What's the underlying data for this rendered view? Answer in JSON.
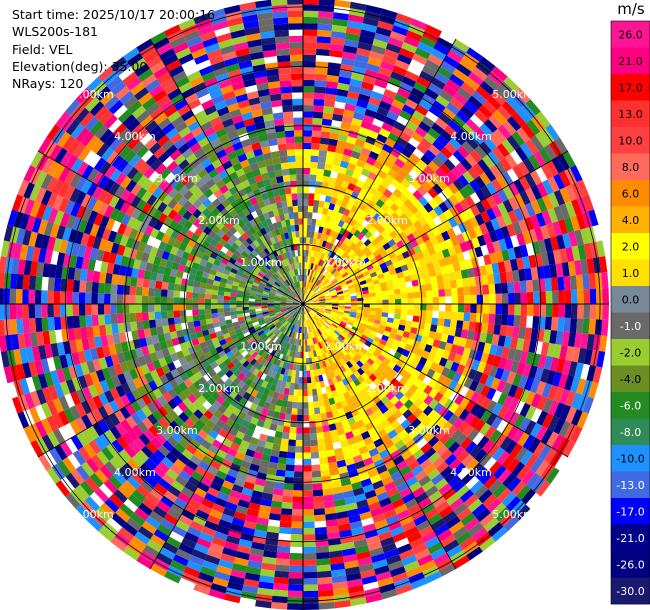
{
  "info": {
    "start_time": "Start time: 2025/10/17 20:00:16",
    "station": "WLS200s-181",
    "field": "Field: VEL",
    "elevation": "Elevation(deg): 35.00",
    "nrays": "NRays: 120"
  },
  "chart_data": {
    "type": "heatmap",
    "projection": "polar PPI",
    "field": "VEL",
    "units": "m/s",
    "nrays": 120,
    "elevation_deg": 35.0,
    "range_rings_km": [
      1,
      2,
      3,
      4,
      5
    ],
    "ring_labels": [
      "1.00km",
      "2.00km",
      "3.00km",
      "4.00km",
      "5.00km"
    ],
    "colorbar": {
      "title": "m/s",
      "bins": [
        {
          "label": "26.0",
          "color": "#ff1493"
        },
        {
          "label": "21.0",
          "color": "#ff0080"
        },
        {
          "label": "17.0",
          "color": "#ff0000"
        },
        {
          "label": "13.0",
          "color": "#ff3030"
        },
        {
          "label": "10.0",
          "color": "#ff4040"
        },
        {
          "label": "8.0",
          "color": "#ff6a5a"
        },
        {
          "label": "6.0",
          "color": "#ff8c00"
        },
        {
          "label": "4.0",
          "color": "#ffb000"
        },
        {
          "label": "2.0",
          "color": "#ffff00"
        },
        {
          "label": "1.0",
          "color": "#ffe000"
        },
        {
          "label": "0.0",
          "color": "#778899"
        },
        {
          "label": "-1.0",
          "color": "#696969"
        },
        {
          "label": "-2.0",
          "color": "#9acd32"
        },
        {
          "label": "-4.0",
          "color": "#6b8e23"
        },
        {
          "label": "-6.0",
          "color": "#228b22"
        },
        {
          "label": "-8.0",
          "color": "#2e8b57"
        },
        {
          "label": "-10.0",
          "color": "#1e90ff"
        },
        {
          "label": "-13.0",
          "color": "#4169e1"
        },
        {
          "label": "-17.0",
          "color": "#0000ff"
        },
        {
          "label": "-21.0",
          "color": "#00008b"
        },
        {
          "label": "-26.0",
          "color": "#000080"
        },
        {
          "label": "-30.0",
          "color": "#191970"
        }
      ]
    }
  }
}
